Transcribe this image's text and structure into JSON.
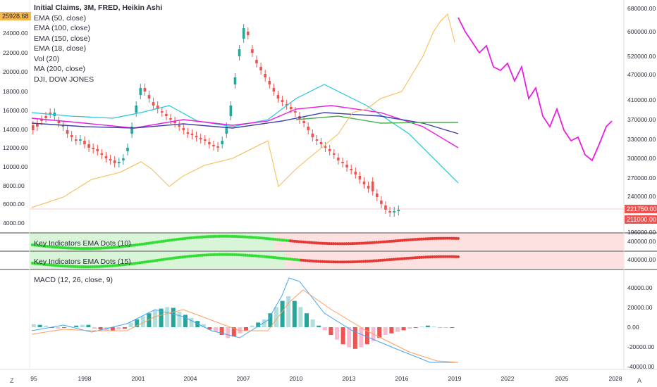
{
  "legend": {
    "title": "Initial Claims, 3M, FRED, Heikin Ashi",
    "items": [
      "EMA (50, close)",
      "EMA (100, close)",
      "EMA (150, close)",
      "EMA (18, close)",
      "Vol (20)",
      "MA (200, close)",
      "DJI, DOW JONES"
    ]
  },
  "tags": {
    "dji_last": "25928.68",
    "claims_last": "221750.00",
    "claims_low": "211000.00"
  },
  "panels": {
    "ema_dots_10": "Key Indicators EMA Dots (10)",
    "ema_dots_15": "Key Indicators EMA Dots (15)",
    "macd": "MACD (12, 26, close, 9)"
  },
  "left_axis_labels": [
    "24000.00",
    "22000.00",
    "20000.00",
    "18000.00",
    "16000.00",
    "14000.00",
    "12000.00",
    "10000.00",
    "8000.00",
    "6000.00",
    "4000.00"
  ],
  "right_axis_labels": [
    "680000.00",
    "600000.00",
    "520000.00",
    "470000.00",
    "410000.00",
    "370000.00",
    "330000.00",
    "300000.00",
    "270000.00",
    "240000.00",
    "196000.00"
  ],
  "dots_axis_label": "400000.00",
  "macd_axis_labels": [
    "40000.00",
    "20000.00",
    "0.00",
    "-20000.00",
    "-40000.00"
  ],
  "x_axis_labels": [
    "95",
    "1998",
    "2001",
    "2004",
    "2007",
    "2010",
    "2013",
    "2016",
    "2019",
    "2022",
    "2025",
    "2028"
  ],
  "buttons": {
    "goto_start": "Z",
    "auto_scale": "A"
  },
  "colors": {
    "bull": "#26a69a",
    "bear": "#ef5350",
    "ema50": "#26c6da",
    "ema100": "#e91ee0",
    "ema150": "#3f3fa8",
    "ma200": "#4caf50",
    "dji": "#f7b94e",
    "macd": "#42a5f5",
    "signal": "#ff9e5e"
  }
}
